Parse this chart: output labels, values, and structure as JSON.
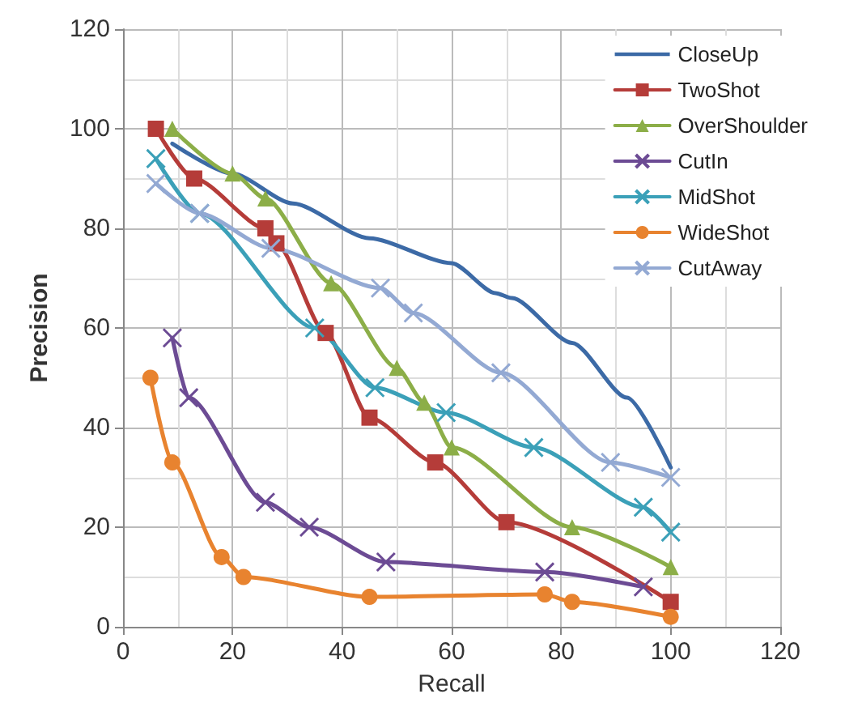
{
  "chart_data": {
    "type": "line",
    "xlabel": "Recall",
    "ylabel": "Precision",
    "xlim": [
      0,
      120
    ],
    "xticks": [
      0,
      20,
      40,
      60,
      80,
      100,
      120
    ],
    "ylim": [
      0,
      120
    ],
    "yticks": [
      0,
      20,
      40,
      60,
      80,
      100,
      120
    ],
    "grid": true,
    "legend": "top right",
    "line_style": "solid",
    "series": [
      {
        "name": "CloseUp",
        "color": "#3c6aa6",
        "marker": "none",
        "x": [
          9,
          20,
          31,
          45,
          60,
          68,
          71,
          82,
          92,
          100
        ],
        "values": [
          97,
          91,
          85,
          78,
          73,
          67,
          66,
          57,
          46,
          32
        ]
      },
      {
        "name": "TwoShot",
        "color": "#b53c39",
        "marker": "square",
        "x": [
          6,
          13,
          26,
          28,
          37,
          45,
          57,
          70,
          100
        ],
        "values": [
          100,
          90,
          80,
          77,
          59,
          42,
          33,
          21,
          5
        ]
      },
      {
        "name": "OverShoulder",
        "color": "#8cae48",
        "marker": "triangle",
        "x": [
          9,
          20,
          26,
          38,
          50,
          55,
          60,
          82,
          100
        ],
        "values": [
          100,
          91,
          86,
          69,
          52,
          45,
          36,
          20,
          12
        ]
      },
      {
        "name": "CutIn",
        "color": "#6c4b94",
        "marker": "cross",
        "x": [
          9,
          12,
          26,
          34,
          48,
          77,
          95
        ],
        "values": [
          58,
          46,
          25,
          20,
          13,
          11,
          8
        ]
      },
      {
        "name": "MidShot",
        "color": "#3ba0b8",
        "marker": "cross",
        "x": [
          6,
          14,
          35,
          46,
          59,
          75,
          95,
          100
        ],
        "values": [
          94,
          83,
          60,
          48,
          43,
          36,
          24,
          19
        ]
      },
      {
        "name": "WideShot",
        "color": "#e8832f",
        "marker": "circle",
        "x": [
          5,
          9,
          18,
          22,
          45,
          77,
          82,
          100
        ],
        "values": [
          50,
          33,
          14,
          10,
          6,
          6.5,
          5,
          2
        ]
      },
      {
        "name": "CutAway",
        "color": "#93a9d3",
        "marker": "cross",
        "x": [
          6,
          14,
          27,
          47,
          53,
          69,
          89,
          100
        ],
        "values": [
          89,
          83,
          76,
          68,
          63,
          51,
          33,
          30
        ]
      }
    ]
  }
}
